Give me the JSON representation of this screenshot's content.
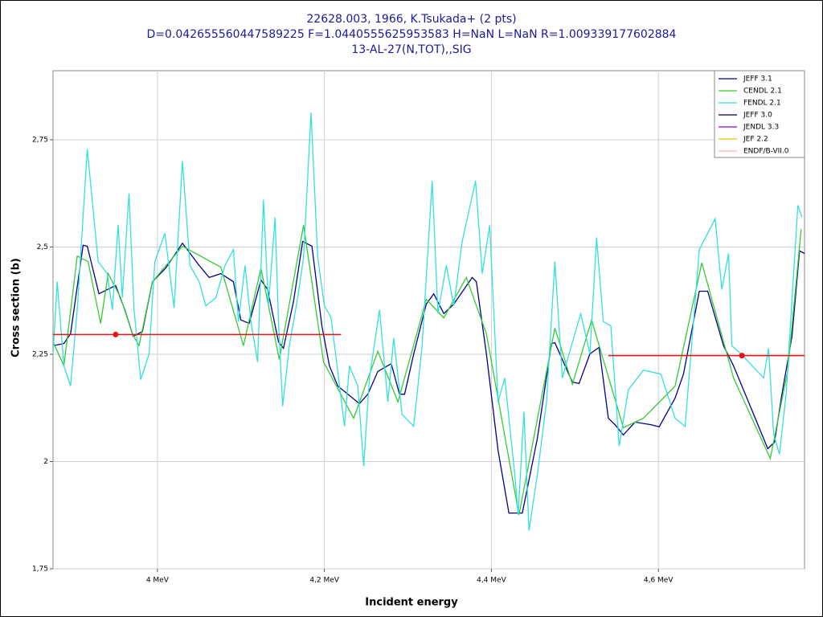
{
  "chart_data": {
    "type": "line",
    "title": [
      "22628.003, 1966, K.Tsukada+ (2 pts)",
      "D=0.042655560447589225 F=1.0440555625953583 H=NaN L=NaN R=1.009339177602884",
      "13-AL-27(N,TOT),,SIG"
    ],
    "xlabel": "Incident energy",
    "ylabel": "Cross section (b)",
    "xlim": [
      3.875,
      4.775
    ],
    "ylim": [
      1.75,
      2.911
    ],
    "xticks": [
      {
        "value": 4.0,
        "label": "4 MeV"
      },
      {
        "value": 4.2,
        "label": "4,2 MeV"
      },
      {
        "value": 4.4,
        "label": "4,4 MeV"
      },
      {
        "value": 4.6,
        "label": "4,6 MeV"
      }
    ],
    "yticks": [
      {
        "value": 1.75,
        "label": "1,75"
      },
      2,
      {
        "value": 2.25,
        "label": "2,25"
      },
      {
        "value": 2.5,
        "label": "2,5"
      },
      {
        "value": 2.75,
        "label": "2,75"
      }
    ],
    "grid": true,
    "legend": "upper right",
    "series": [
      {
        "name": "JEFF 3.1",
        "color": "#00008b",
        "x": [
          3.875,
          3.888,
          3.896,
          3.911,
          3.916,
          3.93,
          3.94,
          3.95,
          3.961,
          3.971,
          3.982,
          3.994,
          4.01,
          4.03,
          4.05,
          4.062,
          4.076,
          4.091,
          4.1,
          4.11,
          4.124,
          4.132,
          4.145,
          4.151,
          4.163,
          4.174,
          4.185,
          4.197,
          4.206,
          4.216,
          4.242,
          4.252,
          4.264,
          4.28,
          4.29,
          4.296,
          4.307,
          4.322,
          4.331,
          4.343,
          4.355,
          4.377,
          4.382,
          4.394,
          4.408,
          4.421,
          4.437,
          4.455,
          4.472,
          4.476,
          4.497,
          4.505,
          4.518,
          4.529,
          4.54,
          4.548,
          4.558,
          4.572,
          4.591,
          4.601,
          4.62,
          4.63,
          4.649,
          4.659,
          4.678,
          4.69,
          4.712,
          4.731,
          4.739,
          4.748,
          4.76,
          4.769,
          4.775
        ],
        "values": [
          2.27,
          2.275,
          2.298,
          2.504,
          2.502,
          2.391,
          2.401,
          2.41,
          2.354,
          2.292,
          2.303,
          2.419,
          2.451,
          2.509,
          2.457,
          2.429,
          2.438,
          2.419,
          2.33,
          2.322,
          2.423,
          2.401,
          2.279,
          2.264,
          2.373,
          2.513,
          2.502,
          2.316,
          2.223,
          2.176,
          2.135,
          2.157,
          2.21,
          2.228,
          2.157,
          2.157,
          2.251,
          2.367,
          2.391,
          2.345,
          2.367,
          2.429,
          2.419,
          2.251,
          2.026,
          1.88,
          1.88,
          2.054,
          2.275,
          2.277,
          2.185,
          2.182,
          2.251,
          2.266,
          2.101,
          2.086,
          2.062,
          2.092,
          2.086,
          2.081,
          2.148,
          2.204,
          2.397,
          2.397,
          2.27,
          2.223,
          2.12,
          2.03,
          2.045,
          2.157,
          2.292,
          2.491,
          2.485
        ]
      },
      {
        "name": "CENDL 2.1",
        "color": "#33cc33",
        "x": [
          3.875,
          3.888,
          3.904,
          3.917,
          3.932,
          3.941,
          3.956,
          3.97,
          3.978,
          3.994,
          4.03,
          4.076,
          4.103,
          4.124,
          4.146,
          4.175,
          4.199,
          4.235,
          4.264,
          4.288,
          4.322,
          4.343,
          4.37,
          4.394,
          4.433,
          4.476,
          4.497,
          4.52,
          4.558,
          4.582,
          4.62,
          4.652,
          4.69,
          4.734,
          4.755,
          4.771
        ],
        "values": [
          2.279,
          2.223,
          2.479,
          2.466,
          2.322,
          2.438,
          2.382,
          2.298,
          2.27,
          2.419,
          2.502,
          2.453,
          2.27,
          2.451,
          2.238,
          2.551,
          2.232,
          2.101,
          2.257,
          2.139,
          2.378,
          2.335,
          2.429,
          2.298,
          1.876,
          2.311,
          2.18,
          2.33,
          2.079,
          2.101,
          2.176,
          2.463,
          2.195,
          2.007,
          2.213,
          2.541
        ]
      },
      {
        "name": "FENDL 2.1",
        "color": "#33e0e0",
        "x": [
          3.875,
          3.88,
          3.888,
          3.896,
          3.904,
          3.916,
          3.929,
          3.94,
          3.946,
          3.953,
          3.958,
          3.966,
          3.972,
          3.98,
          3.99,
          3.997,
          4.009,
          4.02,
          4.03,
          4.039,
          4.05,
          4.058,
          4.07,
          4.081,
          4.091,
          4.097,
          4.105,
          4.112,
          4.12,
          4.127,
          4.133,
          4.141,
          4.145,
          4.15,
          4.158,
          4.168,
          4.175,
          4.184,
          4.192,
          4.2,
          4.208,
          4.224,
          4.23,
          4.24,
          4.247,
          4.254,
          4.266,
          4.276,
          4.283,
          4.293,
          4.307,
          4.317,
          4.329,
          4.336,
          4.346,
          4.355,
          4.365,
          4.381,
          4.389,
          4.398,
          4.408,
          4.416,
          4.428,
          4.432,
          4.439,
          4.445,
          4.455,
          4.466,
          4.476,
          4.485,
          4.493,
          4.507,
          4.518,
          4.526,
          4.534,
          4.543,
          4.553,
          4.564,
          4.582,
          4.603,
          4.62,
          4.632,
          4.649,
          4.668,
          4.676,
          4.684,
          4.688,
          4.699,
          4.726,
          4.732,
          4.738,
          4.745,
          4.753,
          4.767,
          4.772
        ],
        "values": [
          2.251,
          2.419,
          2.223,
          2.176,
          2.354,
          2.728,
          2.466,
          2.438,
          2.354,
          2.551,
          2.382,
          2.625,
          2.354,
          2.191,
          2.251,
          2.466,
          2.532,
          2.358,
          2.7,
          2.457,
          2.419,
          2.363,
          2.382,
          2.457,
          2.494,
          2.326,
          2.457,
          2.326,
          2.232,
          2.61,
          2.363,
          2.569,
          2.326,
          2.129,
          2.27,
          2.382,
          2.476,
          2.813,
          2.476,
          2.363,
          2.335,
          2.082,
          2.223,
          2.176,
          1.989,
          2.195,
          2.354,
          2.139,
          2.288,
          2.11,
          2.082,
          2.27,
          2.654,
          2.345,
          2.457,
          2.363,
          2.513,
          2.654,
          2.438,
          2.551,
          2.139,
          2.195,
          1.97,
          1.876,
          2.116,
          1.839,
          1.97,
          2.139,
          2.466,
          2.195,
          2.251,
          2.345,
          2.251,
          2.522,
          2.326,
          2.316,
          2.036,
          2.167,
          2.213,
          2.204,
          2.101,
          2.082,
          2.494,
          2.566,
          2.401,
          2.485,
          2.27,
          2.251,
          2.195,
          2.264,
          2.064,
          2.017,
          2.157,
          2.597,
          2.569
        ]
      },
      {
        "name": "JEFF 3.0",
        "color": "#000033",
        "x": [],
        "values": []
      },
      {
        "name": "JENDL 3.3",
        "color": "#9900cc",
        "x": [],
        "values": []
      },
      {
        "name": "JEF 2.2",
        "color": "#e6c300",
        "x": [],
        "values": []
      },
      {
        "name": "ENDF/B-VII.0",
        "color": "#ffb0b0",
        "x": [],
        "values": []
      }
    ],
    "points": {
      "color": "#ee1111",
      "x": [
        3.95,
        4.7
      ],
      "values": [
        2.296,
        2.247
      ],
      "xmin": [
        3.875,
        4.54
      ],
      "xmax": [
        4.22,
        4.775
      ]
    }
  }
}
